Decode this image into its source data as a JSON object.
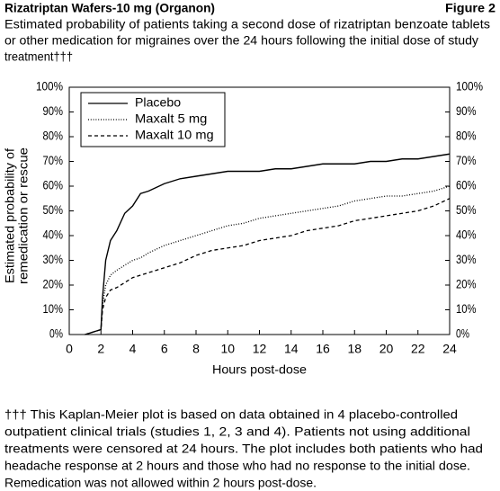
{
  "header": {
    "title": "Rizatriptan Wafers-10 mg (Organon)",
    "figure": "Figure 2",
    "subtitle_lines": [
      "Estimated probability of patients taking a second dose of rizatriptan benzoate tablets",
      "or other medication for migraines over the 24 hours following the initial dose of study",
      "treatment†††"
    ]
  },
  "chart_data": {
    "type": "line",
    "xlabel": "Hours post-dose",
    "ylabel_lines": [
      "Estimated probability of",
      "remedication or rescue"
    ],
    "x": [
      1,
      2,
      2.1,
      2.3,
      2.6,
      3,
      3.5,
      4,
      4.5,
      5,
      6,
      7,
      8,
      9,
      10,
      11,
      12,
      13,
      14,
      15,
      16,
      17,
      18,
      19,
      20,
      21,
      22,
      23,
      24
    ],
    "series": [
      {
        "name": "Placebo",
        "color": "#000000",
        "line_style": "solid",
        "values": [
          0,
          2,
          15,
          30,
          38,
          42,
          49,
          52,
          57,
          58,
          61,
          63,
          64,
          65,
          66,
          66,
          66,
          67,
          67,
          68,
          69,
          69,
          69,
          70,
          70,
          71,
          71,
          72,
          73
        ]
      },
      {
        "name": "Maxalt 5 mg",
        "color": "#000000",
        "line_style": "dotted",
        "values": [
          0,
          2,
          12,
          20,
          24,
          26,
          28,
          30,
          31,
          33,
          36,
          38,
          40,
          42,
          44,
          45,
          47,
          48,
          49,
          50,
          51,
          52,
          54,
          55,
          56,
          56,
          57,
          58,
          60
        ]
      },
      {
        "name": "Maxalt 10 mg",
        "color": "#000000",
        "line_style": "dashed",
        "values": [
          0,
          2,
          10,
          15,
          18,
          19,
          21,
          23,
          24,
          25,
          27,
          29,
          32,
          34,
          35,
          36,
          38,
          39,
          40,
          42,
          43,
          44,
          46,
          47,
          48,
          49,
          50,
          52,
          55
        ]
      }
    ],
    "xlim": [
      0,
      24
    ],
    "xticks": [
      0,
      2,
      4,
      6,
      8,
      10,
      12,
      14,
      16,
      18,
      20,
      22,
      24
    ],
    "ylim": [
      0,
      100
    ],
    "yticks": [
      {
        "value": 0,
        "label": "0%"
      },
      {
        "value": 10,
        "label": "10%"
      },
      {
        "value": 20,
        "label": "20%"
      },
      {
        "value": 30,
        "label": "30%"
      },
      {
        "value": 40,
        "label": "40%"
      },
      {
        "value": 50,
        "label": "50%"
      },
      {
        "value": 60,
        "label": "60%"
      },
      {
        "value": 70,
        "label": "70%"
      },
      {
        "value": 80,
        "label": "80%"
      },
      {
        "value": 90,
        "label": "90%"
      },
      {
        "value": 100,
        "label": "100%"
      }
    ],
    "y2lim": [
      0,
      100
    ],
    "y2ticks": [
      {
        "value": 0,
        "label": "0%"
      },
      {
        "value": 10,
        "label": "10%"
      },
      {
        "value": 20,
        "label": "20%"
      },
      {
        "value": 30,
        "label": "30%"
      },
      {
        "value": 40,
        "label": "40%"
      },
      {
        "value": 50,
        "label": "50%"
      },
      {
        "value": 60,
        "label": "60%"
      },
      {
        "value": 70,
        "label": "70%"
      },
      {
        "value": 80,
        "label": "80%"
      },
      {
        "value": 90,
        "label": "90%"
      },
      {
        "value": 100,
        "label": "100%"
      }
    ],
    "legend": "upper left",
    "grid": false
  },
  "footnote_lines": [
    "††† This Kaplan-Meier plot is based on data obtained in 4 placebo-controlled",
    "outpatient clinical trials (studies 1, 2, 3 and 4). Patients not using additional",
    "treatments were censored at 24 hours. The plot includes both patients who had",
    "headache response at 2 hours and those who had no response to the initial dose.",
    "Remedication was not allowed within 2 hours post-dose."
  ]
}
